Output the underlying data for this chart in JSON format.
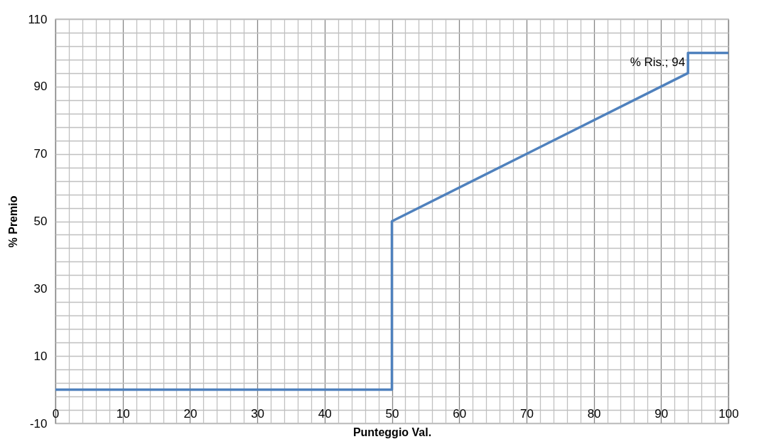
{
  "chart_data": {
    "type": "line",
    "xlabel": "Punteggio Val.",
    "ylabel": "% Premio",
    "x": [
      0,
      50,
      50,
      94,
      94,
      100
    ],
    "series": [
      {
        "color": "#4f81bd",
        "values": [
          0,
          0,
          50,
          94,
          100,
          100
        ]
      }
    ],
    "xlim": [
      0,
      100
    ],
    "ylim": [
      -10,
      110
    ],
    "xticks": [
      0,
      {
        "value": 2,
        "label": null
      },
      {
        "value": 4,
        "label": null
      },
      {
        "value": 6,
        "label": null
      },
      {
        "value": 8,
        "label": null
      },
      10,
      {
        "value": 12,
        "label": null
      },
      {
        "value": 14,
        "label": null
      },
      {
        "value": 16,
        "label": null
      },
      {
        "value": 18,
        "label": null
      },
      20,
      {
        "value": 22,
        "label": null
      },
      {
        "value": 24,
        "label": null
      },
      {
        "value": 26,
        "label": null
      },
      {
        "value": 28,
        "label": null
      },
      30,
      {
        "value": 32,
        "label": null
      },
      {
        "value": 34,
        "label": null
      },
      {
        "value": 36,
        "label": null
      },
      {
        "value": 38,
        "label": null
      },
      40,
      {
        "value": 42,
        "label": null
      },
      {
        "value": 44,
        "label": null
      },
      {
        "value": 46,
        "label": null
      },
      {
        "value": 48,
        "label": null
      },
      50,
      {
        "value": 52,
        "label": null
      },
      {
        "value": 54,
        "label": null
      },
      {
        "value": 56,
        "label": null
      },
      {
        "value": 58,
        "label": null
      },
      60,
      {
        "value": 62,
        "label": null
      },
      {
        "value": 64,
        "label": null
      },
      {
        "value": 66,
        "label": null
      },
      {
        "value": 68,
        "label": null
      },
      70,
      {
        "value": 72,
        "label": null
      },
      {
        "value": 74,
        "label": null
      },
      {
        "value": 76,
        "label": null
      },
      {
        "value": 78,
        "label": null
      },
      80,
      {
        "value": 82,
        "label": null
      },
      {
        "value": 84,
        "label": null
      },
      {
        "value": 86,
        "label": null
      },
      {
        "value": 88,
        "label": null
      },
      90,
      {
        "value": 92,
        "label": null
      },
      {
        "value": 94,
        "label": null
      },
      {
        "value": 96,
        "label": null
      },
      {
        "value": 98,
        "label": null
      },
      100
    ],
    "yticks": [
      -10,
      {
        "value": -6,
        "label": null
      },
      {
        "value": -2,
        "label": null
      },
      {
        "value": 2,
        "label": null
      },
      {
        "value": 6,
        "label": null
      },
      10,
      {
        "value": 14,
        "label": null
      },
      {
        "value": 18,
        "label": null
      },
      {
        "value": 22,
        "label": null
      },
      {
        "value": 26,
        "label": null
      },
      30,
      {
        "value": 34,
        "label": null
      },
      {
        "value": 38,
        "label": null
      },
      {
        "value": 42,
        "label": null
      },
      {
        "value": 46,
        "label": null
      },
      50,
      {
        "value": 54,
        "label": null
      },
      {
        "value": 58,
        "label": null
      },
      {
        "value": 62,
        "label": null
      },
      {
        "value": 66,
        "label": null
      },
      70,
      {
        "value": 74,
        "label": null
      },
      {
        "value": 78,
        "label": null
      },
      {
        "value": 82,
        "label": null
      },
      {
        "value": 86,
        "label": null
      },
      90,
      {
        "value": 94,
        "label": null
      },
      {
        "value": 98,
        "label": null
      },
      {
        "value": 102,
        "label": null
      },
      {
        "value": 106,
        "label": null
      },
      110
    ],
    "grid": true,
    "marker": "none",
    "line_style": "solid",
    "legend": false,
    "annotations": [
      {
        "text": "% Ris.; 94",
        "x": 94,
        "y": 94
      }
    ]
  }
}
